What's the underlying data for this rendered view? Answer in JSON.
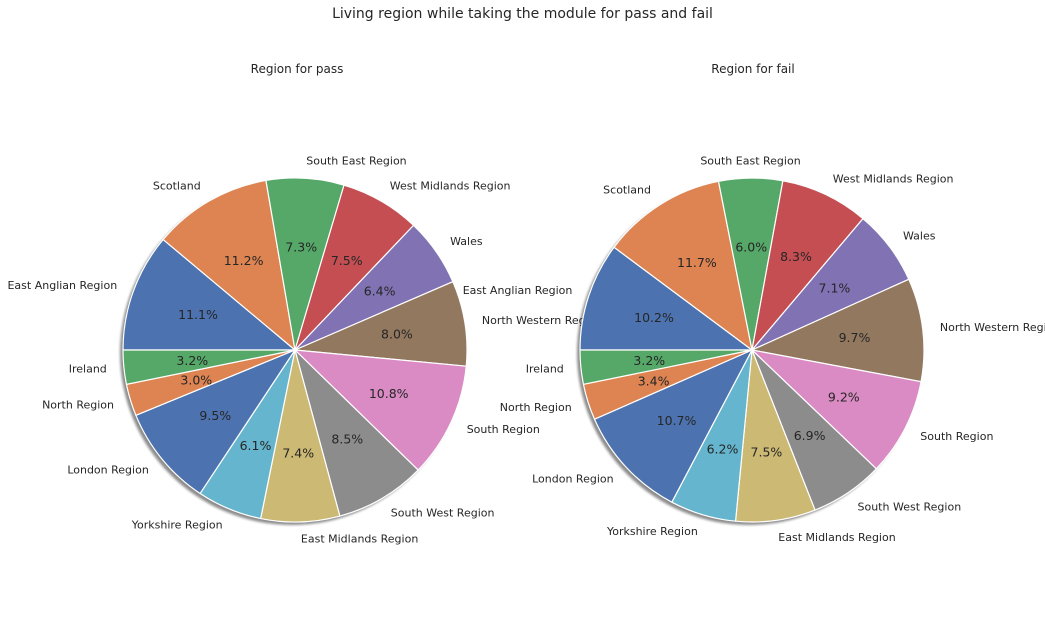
{
  "figure_title": "Living region while taking the module for pass and fail",
  "chart_data": [
    {
      "type": "pie",
      "title": "Region for pass",
      "start_angle_deg": 180,
      "direction": "clockwise",
      "shadow": true,
      "slices": [
        {
          "label": "East Anglian Region",
          "value": 11.1,
          "pct_label": "11.1%",
          "color": "#4c72b0"
        },
        {
          "label": "Scotland",
          "value": 11.2,
          "pct_label": "11.2%",
          "color": "#dd8452"
        },
        {
          "label": "South East Region",
          "value": 7.3,
          "pct_label": "7.3%",
          "color": "#55a868"
        },
        {
          "label": "West Midlands Region",
          "value": 7.5,
          "pct_label": "7.5%",
          "color": "#c44e52"
        },
        {
          "label": "Wales",
          "value": 6.4,
          "pct_label": "6.4%",
          "color": "#8172b3"
        },
        {
          "label": "North Western Region",
          "value": 8.0,
          "pct_label": "8.0%",
          "color": "#937860"
        },
        {
          "label": "South Region",
          "value": 10.8,
          "pct_label": "10.8%",
          "color": "#da8bc3"
        },
        {
          "label": "South West Region",
          "value": 8.5,
          "pct_label": "8.5%",
          "color": "#8c8c8c"
        },
        {
          "label": "East Midlands Region",
          "value": 7.4,
          "pct_label": "7.4%",
          "color": "#ccb974"
        },
        {
          "label": "Yorkshire Region",
          "value": 6.1,
          "pct_label": "6.1%",
          "color": "#64b5cd"
        },
        {
          "label": "London Region",
          "value": 9.5,
          "pct_label": "9.5%",
          "color": "#4c72b0"
        },
        {
          "label": "North Region",
          "value": 3.0,
          "pct_label": "3.0%",
          "color": "#dd8452"
        },
        {
          "label": "Ireland",
          "value": 3.2,
          "pct_label": "3.2%",
          "color": "#55a868"
        }
      ]
    },
    {
      "type": "pie",
      "title": "Region for fail",
      "start_angle_deg": 180,
      "direction": "clockwise",
      "shadow": true,
      "slices": [
        {
          "label": "East Anglian Region",
          "value": 10.2,
          "pct_label": "10.2%",
          "color": "#4c72b0"
        },
        {
          "label": "Scotland",
          "value": 11.7,
          "pct_label": "11.7%",
          "color": "#dd8452"
        },
        {
          "label": "South East Region",
          "value": 6.0,
          "pct_label": "6.0%",
          "color": "#55a868"
        },
        {
          "label": "West Midlands Region",
          "value": 8.3,
          "pct_label": "8.3%",
          "color": "#c44e52"
        },
        {
          "label": "Wales",
          "value": 7.1,
          "pct_label": "7.1%",
          "color": "#8172b3"
        },
        {
          "label": "North Western Region",
          "value": 9.7,
          "pct_label": "9.7%",
          "color": "#937860"
        },
        {
          "label": "South Region",
          "value": 9.2,
          "pct_label": "9.2%",
          "color": "#da8bc3"
        },
        {
          "label": "South West Region",
          "value": 6.9,
          "pct_label": "6.9%",
          "color": "#8c8c8c"
        },
        {
          "label": "East Midlands Region",
          "value": 7.5,
          "pct_label": "7.5%",
          "color": "#ccb974"
        },
        {
          "label": "Yorkshire Region",
          "value": 6.2,
          "pct_label": "6.2%",
          "color": "#64b5cd"
        },
        {
          "label": "London Region",
          "value": 10.7,
          "pct_label": "10.7%",
          "color": "#4c72b0"
        },
        {
          "label": "North Region",
          "value": 3.4,
          "pct_label": "3.4%",
          "color": "#dd8452"
        },
        {
          "label": "Ireland",
          "value": 3.2,
          "pct_label": "3.2%",
          "color": "#55a868"
        }
      ]
    }
  ]
}
